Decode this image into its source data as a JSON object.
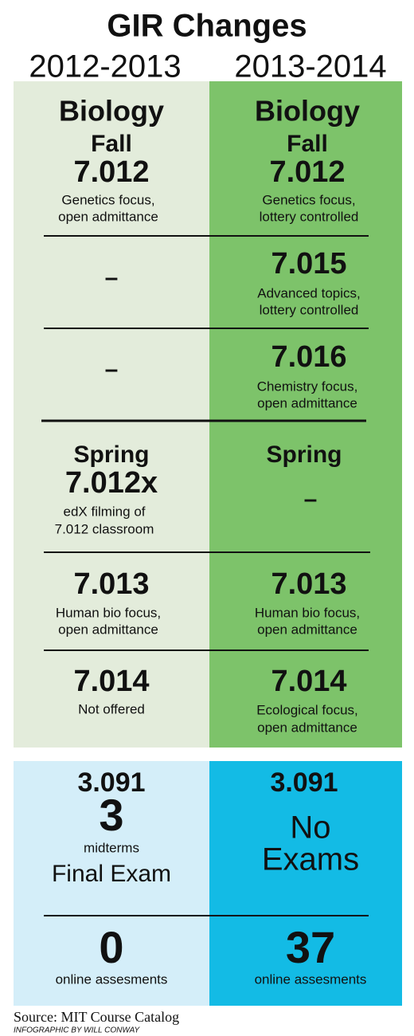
{
  "title": "GIR Changes",
  "columns": [
    "2012-2013",
    "2013-2014"
  ],
  "biology": {
    "fall": {
      "left": {
        "subject": "Biology",
        "term": "Fall",
        "course": "7.012",
        "description": [
          "Genetics focus,",
          "open admittance"
        ]
      },
      "right": {
        "subject": "Biology",
        "term": "Fall",
        "course": "7.012",
        "description": [
          "Genetics focus,",
          "lottery controlled"
        ]
      }
    },
    "fall_rows": [
      {
        "left": {
          "course": "–"
        },
        "right": {
          "course": "7.015",
          "description": [
            "Advanced topics,",
            "lottery controlled"
          ]
        }
      },
      {
        "left": {
          "course": "–"
        },
        "right": {
          "course": "7.016",
          "description": [
            "Chemistry focus,",
            "open admittance"
          ]
        }
      }
    ],
    "spring": {
      "left": {
        "term": "Spring",
        "course": "7.012x",
        "description": [
          "edX filming of",
          "7.012 classroom"
        ]
      },
      "right": {
        "term": "Spring",
        "course": "–"
      }
    },
    "spring_rows": [
      {
        "left": {
          "course": "7.013",
          "description": [
            "Human bio focus,",
            "open admittance"
          ]
        },
        "right": {
          "course": "7.013",
          "description": [
            "Human bio focus,",
            "open admittance"
          ]
        }
      },
      {
        "left": {
          "course": "7.014",
          "description": [
            "Not offered"
          ]
        },
        "right": {
          "course": "7.014",
          "description": [
            "Ecological focus,",
            "open admittance"
          ]
        }
      }
    ]
  },
  "chemistry": {
    "left": {
      "course": "3.091",
      "exam_count": "3",
      "exam_count_label": "midterms",
      "exam": [
        "Final Exam"
      ],
      "assessments": "0",
      "assessments_label": "online assesments"
    },
    "right": {
      "course": "3.091",
      "exam": [
        "No",
        "Exams"
      ],
      "assessments": "37",
      "assessments_label": "online assesments"
    }
  },
  "source": "Source: MIT Course Catalog",
  "credit": "INFOGRAPHIC BY WILL CONWAY"
}
